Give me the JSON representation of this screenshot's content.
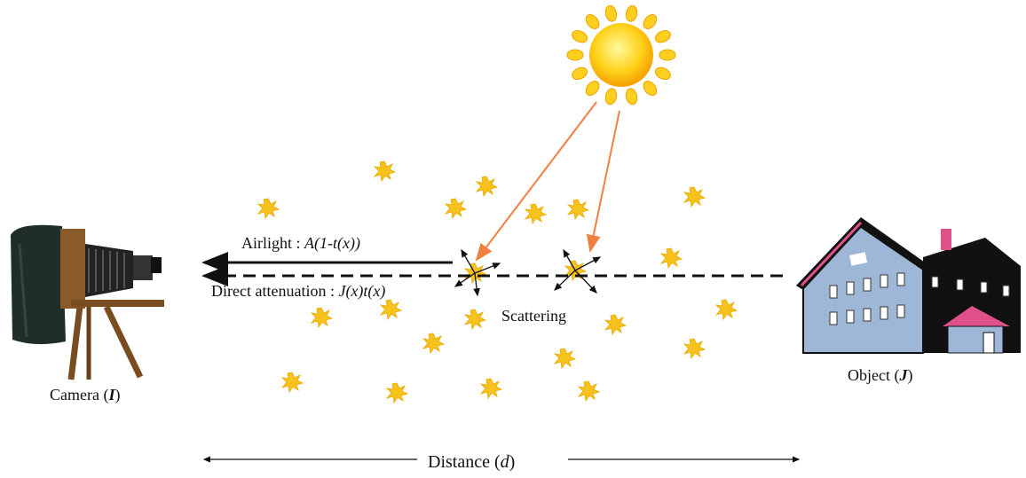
{
  "labels": {
    "airlight": [
      "Airlight : ",
      "A(1-t(x))"
    ],
    "direct_attenuation": [
      "Direct attenuation : ",
      "J(x)t(x)"
    ],
    "scattering": "Scattering",
    "camera": [
      "Camera (",
      "I",
      ")"
    ],
    "object": [
      "Object (",
      "J",
      ")"
    ],
    "distance": [
      "Distance (",
      "d",
      ")"
    ]
  }
}
